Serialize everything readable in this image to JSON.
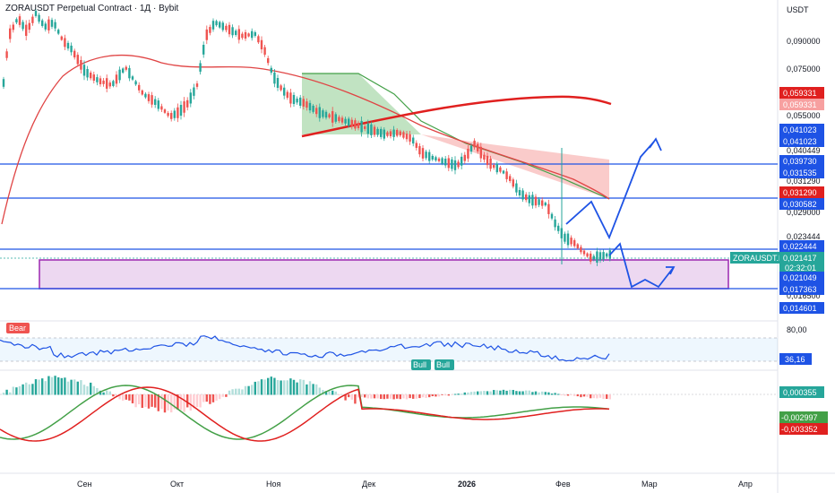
{
  "header": {
    "title": "ZORAUSDT Perpetual Contract · 1Д · Bybit",
    "currency": "USDT"
  },
  "colors": {
    "up": "#26a69a",
    "down": "#ef5350",
    "blue": "#1e53e5",
    "red": "#e0201f",
    "ma": "#e04444",
    "green_line": "#43a047",
    "purple": "#9c27b0"
  },
  "chart_data": [
    {
      "type": "candlestick",
      "title": "ZORAUSDT Perpetual Contract · 1Д · Bybit",
      "y_scale": "log",
      "yaxis_ticks": [
        "0,090000",
        "0,075000",
        "0,055000",
        "0,040449",
        "0,031290",
        "0,029000",
        "0,023444",
        "0,016500"
      ],
      "xaxis_ticks": [
        "Сен",
        "Окт",
        "Ноя",
        "Дек",
        "2026",
        "Фев",
        "Мар",
        "Апр"
      ],
      "last_price": "0,021417",
      "symbol_tag": "ZORAUSDT.P",
      "countdown": "02:32:01",
      "price_badges": [
        {
          "text": "0,059331",
          "style": "red"
        },
        {
          "text": "0,059331",
          "style": "pink"
        },
        {
          "text": "0,041023",
          "style": "blue"
        },
        {
          "text": "0,041023",
          "style": "blue"
        },
        {
          "text": "0,039730",
          "style": "blue"
        },
        {
          "text": "0,031535",
          "style": "blue"
        },
        {
          "text": "0,031290",
          "style": "red"
        },
        {
          "text": "0,030582",
          "style": "blue"
        },
        {
          "text": "0,022444",
          "style": "blue"
        },
        {
          "text": "0,021049",
          "style": "blue"
        },
        {
          "text": "0,017363",
          "style": "blue"
        },
        {
          "text": "0,014601",
          "style": "blue"
        }
      ],
      "horizontal_levels": [
        "0,039730",
        "0,031290",
        "0,022444",
        "0,017363"
      ],
      "zone": {
        "top": "0,022444",
        "bottom": "0,017363"
      }
    },
    {
      "type": "line",
      "name": "RSI",
      "upper_tick": "80,00",
      "value": "36,16",
      "labels": [
        "Bear",
        "Bull",
        "Bull"
      ]
    },
    {
      "type": "bar",
      "name": "MACD",
      "values_printed": [
        "0,000355",
        "-0,002997",
        "-0,003352"
      ]
    }
  ]
}
